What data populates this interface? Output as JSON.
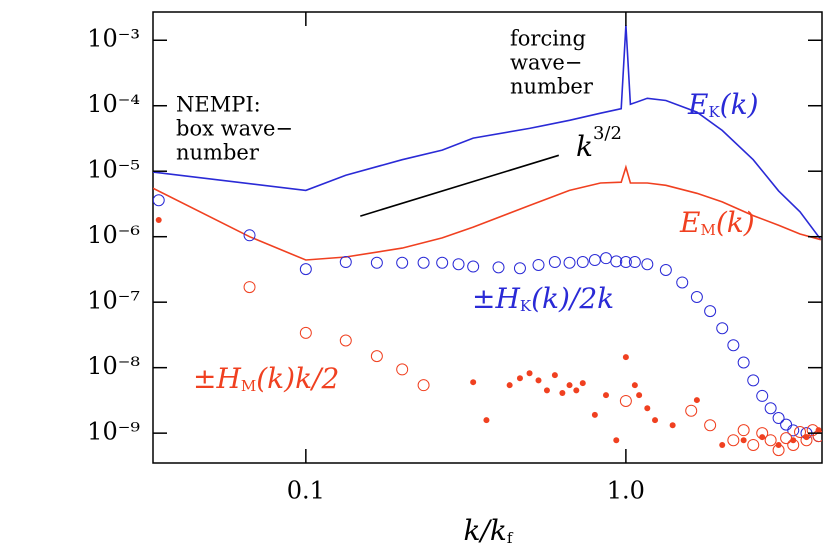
{
  "chart_data": {
    "type": "line",
    "log_x": true,
    "log_y": true,
    "xlim": [
      0.0333,
      4.1
    ],
    "ylim": [
      3.5e-10,
      0.0027
    ],
    "xticks": [
      0.1,
      {
        "value": 1,
        "label": "1.0"
      }
    ],
    "yticks": [
      {
        "value": 0.001,
        "label": "10⁻³"
      },
      {
        "value": 0.0001,
        "label": "10⁻⁴"
      },
      {
        "value": 1e-05,
        "label": "10⁻⁵"
      },
      {
        "value": 1e-06,
        "label": "10⁻⁶"
      },
      {
        "value": 1e-07,
        "label": "10⁻⁷"
      },
      {
        "value": 1e-08,
        "label": "10⁻⁸"
      },
      {
        "value": 1e-09,
        "label": "10⁻⁹"
      }
    ],
    "xlabel": {
      "text": "k/k",
      "sub": "f"
    },
    "series": [
      {
        "style": "line",
        "color": "#2a2ad6",
        "x": [
          0.0333,
          0.1,
          0.1333,
          0.2,
          0.2667,
          0.3333,
          0.5,
          0.6667,
          0.8333,
          0.9667,
          1.0,
          1.0333,
          1.1667,
          1.3333,
          1.6667,
          2.0,
          2.5,
          3.0,
          3.5,
          4.0667
        ],
        "values": [
          9.7e-06,
          5.1e-06,
          8.7e-06,
          1.5e-05,
          2.1e-05,
          3.2e-05,
          4.5e-05,
          6e-05,
          7.7e-05,
          9e-05,
          0.0017,
          0.000105,
          0.00013,
          0.00012,
          8e-05,
          4.2e-05,
          1.5e-05,
          5e-06,
          2.4e-06,
          9e-07
        ]
      },
      {
        "style": "line",
        "color": "#f04020",
        "x": [
          0.0333,
          0.0667,
          0.1,
          0.1333,
          0.2,
          0.2667,
          0.3333,
          0.5,
          0.6667,
          0.8333,
          0.9667,
          1.0,
          1.0333,
          1.1667,
          1.3333,
          1.6667,
          2.0,
          2.5,
          3.0,
          3.5,
          4.0667
        ],
        "values": [
          5.5e-06,
          1e-06,
          4.4e-07,
          4.9e-07,
          6.7e-07,
          9.6e-07,
          1.4e-06,
          3e-06,
          5.1e-06,
          6.6e-06,
          6.8e-06,
          1.15e-05,
          6.6e-06,
          6.6e-06,
          6.1e-06,
          4.6e-06,
          3.4e-06,
          2.1e-06,
          1.5e-06,
          1.1e-06,
          9e-07
        ]
      },
      {
        "style": "line",
        "color": "#000000",
        "x": [
          0.148,
          0.617
        ],
        "values": [
          2.06e-06,
          1.75e-05
        ]
      },
      {
        "style": "open-circle",
        "color": "#2a2ad6",
        "x": [
          0.0347,
          0.0667,
          0.1,
          0.1333,
          0.1667,
          0.2,
          0.2333,
          0.2667,
          0.3,
          0.3333,
          0.4,
          0.4667,
          0.5333,
          0.6,
          0.6667,
          0.7333,
          0.8,
          0.8667,
          0.9333,
          1.0,
          1.0667,
          1.1667,
          1.3333,
          1.5,
          1.6667,
          1.8333,
          2.0,
          2.1667,
          2.3333,
          2.5,
          2.6667,
          2.8333,
          3.0,
          3.1667,
          3.3333,
          3.6667,
          4.0
        ],
        "values": [
          3.6e-06,
          1.05e-06,
          3.2e-07,
          4.1e-07,
          4e-07,
          4e-07,
          4e-07,
          4e-07,
          3.8e-07,
          3.5e-07,
          3.4e-07,
          3.3e-07,
          3.7e-07,
          4.1e-07,
          4e-07,
          4.1e-07,
          4.4e-07,
          4.7e-07,
          4.2e-07,
          4.1e-07,
          4.1e-07,
          3.8e-07,
          3.1e-07,
          2e-07,
          1.2e-07,
          7.3e-08,
          4e-08,
          2.2e-08,
          1.2e-08,
          6.4e-09,
          3.7e-09,
          2.4e-09,
          1.7e-09,
          1.35e-09,
          1.1e-09,
          1e-09,
          9e-10
        ]
      },
      {
        "style": "open-circle",
        "color": "#f04020",
        "x": [
          0.0667,
          0.1,
          0.1333,
          0.1667,
          0.2,
          0.2333,
          1.0,
          1.6,
          1.8333,
          2.1667,
          2.3333,
          2.5,
          2.6667,
          2.8333,
          3.0,
          3.1667,
          3.3333,
          3.5,
          3.6667,
          3.8333,
          4.0
        ],
        "values": [
          1.7e-07,
          3.4e-08,
          2.6e-08,
          1.5e-08,
          9.4e-09,
          5.4e-09,
          3.1e-09,
          2.2e-09,
          1.32e-09,
          7.8e-10,
          1.11e-09,
          6.6e-10,
          1e-09,
          7.8e-10,
          5.5e-10,
          8.4e-10,
          6.6e-10,
          1.04e-09,
          7.8e-10,
          1.11e-09,
          9e-10
        ]
      },
      {
        "style": "filled-circle",
        "color": "#f04020",
        "x": [
          0.0347,
          0.3333,
          0.3667,
          0.4333,
          0.4667,
          0.5,
          0.5333,
          0.5667,
          0.6,
          0.6333,
          0.6667,
          0.7,
          0.7333,
          0.8,
          0.8667,
          0.9333,
          1.0,
          1.0667,
          1.1,
          1.1667,
          1.2333,
          1.4,
          1.6667,
          2.0,
          2.3333,
          2.6667,
          3.0,
          3.3333,
          3.6667,
          4.0
        ],
        "values": [
          1.8e-06,
          6e-09,
          1.58e-09,
          5.4e-09,
          6.9e-09,
          8.2e-09,
          6.4e-09,
          4.5e-09,
          7.7e-09,
          4.1e-09,
          5.4e-09,
          4.5e-09,
          5.8e-09,
          1.9e-09,
          3.8e-09,
          7.8e-10,
          1.45e-08,
          5.4e-09,
          3.8e-09,
          2.4e-09,
          1.58e-09,
          1.32e-09,
          3.2e-09,
          6.6e-10,
          7.8e-10,
          8.7e-10,
          6.6e-10,
          7.8e-10,
          8.7e-10,
          1.11e-09
        ]
      }
    ],
    "annotations": [
      {
        "text": "E",
        "sub": "K",
        "tail": "(k)",
        "color": "#2a2ad6"
      },
      {
        "text": "E",
        "sub": "M",
        "tail": "(k)",
        "color": "#f04020"
      },
      {
        "text": "±H",
        "sub": "K",
        "tail": "(k)/2k",
        "color": "#2a2ad6"
      },
      {
        "text": "±H",
        "sub": "M",
        "tail": "(k)k/2",
        "color": "#f04020"
      },
      {
        "text": "k",
        "sup": "3/2",
        "color": "#000000"
      }
    ],
    "notes": [
      {
        "lines": [
          "forcing",
          "wave−",
          "number"
        ]
      },
      {
        "lines": [
          "NEMPI:",
          "box wave−",
          "number"
        ]
      }
    ]
  }
}
